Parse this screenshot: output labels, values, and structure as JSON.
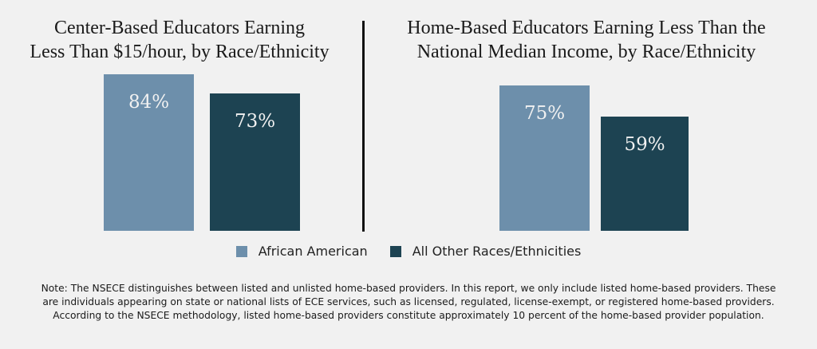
{
  "colors": {
    "background": "#f1f1f1",
    "african_american": "#6d8fab",
    "all_other": "#1d4352"
  },
  "chart_data": [
    {
      "type": "bar",
      "title": "Center-Based Educators Earning Less Than $15/hour, by Race/Ethnicity",
      "categories": [
        "African American",
        "All Other Races/Ethnicities"
      ],
      "values": [
        84,
        73
      ],
      "labels": [
        "84%",
        "73%"
      ]
    },
    {
      "type": "bar",
      "title": "Home-Based Educators Earning Less Than the National Median Income, by Race/Ethnicity",
      "categories": [
        "African American",
        "All Other Races/Ethnicities"
      ],
      "values": [
        75,
        59
      ],
      "labels": [
        "75%",
        "59%"
      ]
    }
  ],
  "titles": {
    "left_line1": "Center-Based Educators Earning",
    "left_line2": "Less Than $15/hour, by Race/Ethnicity",
    "right_line1": "Home-Based Educators Earning Less Than the",
    "right_line2": "National Median Income, by Race/Ethnicity"
  },
  "legend": [
    {
      "label": "African American",
      "color": "#6d8fab"
    },
    {
      "label": "All Other Races/Ethnicities",
      "color": "#1d4352"
    }
  ],
  "note": "Note: The NSECE distinguishes between listed and unlisted home-based providers. In this report, we only include listed home-based providers. These are individuals appearing on state or national lists of ECE services, such as licensed, regulated, license-exempt, or registered home-based providers. According to the NSECE methodology, listed home-based providers constitute approximately 10 percent of the home-based provider population."
}
